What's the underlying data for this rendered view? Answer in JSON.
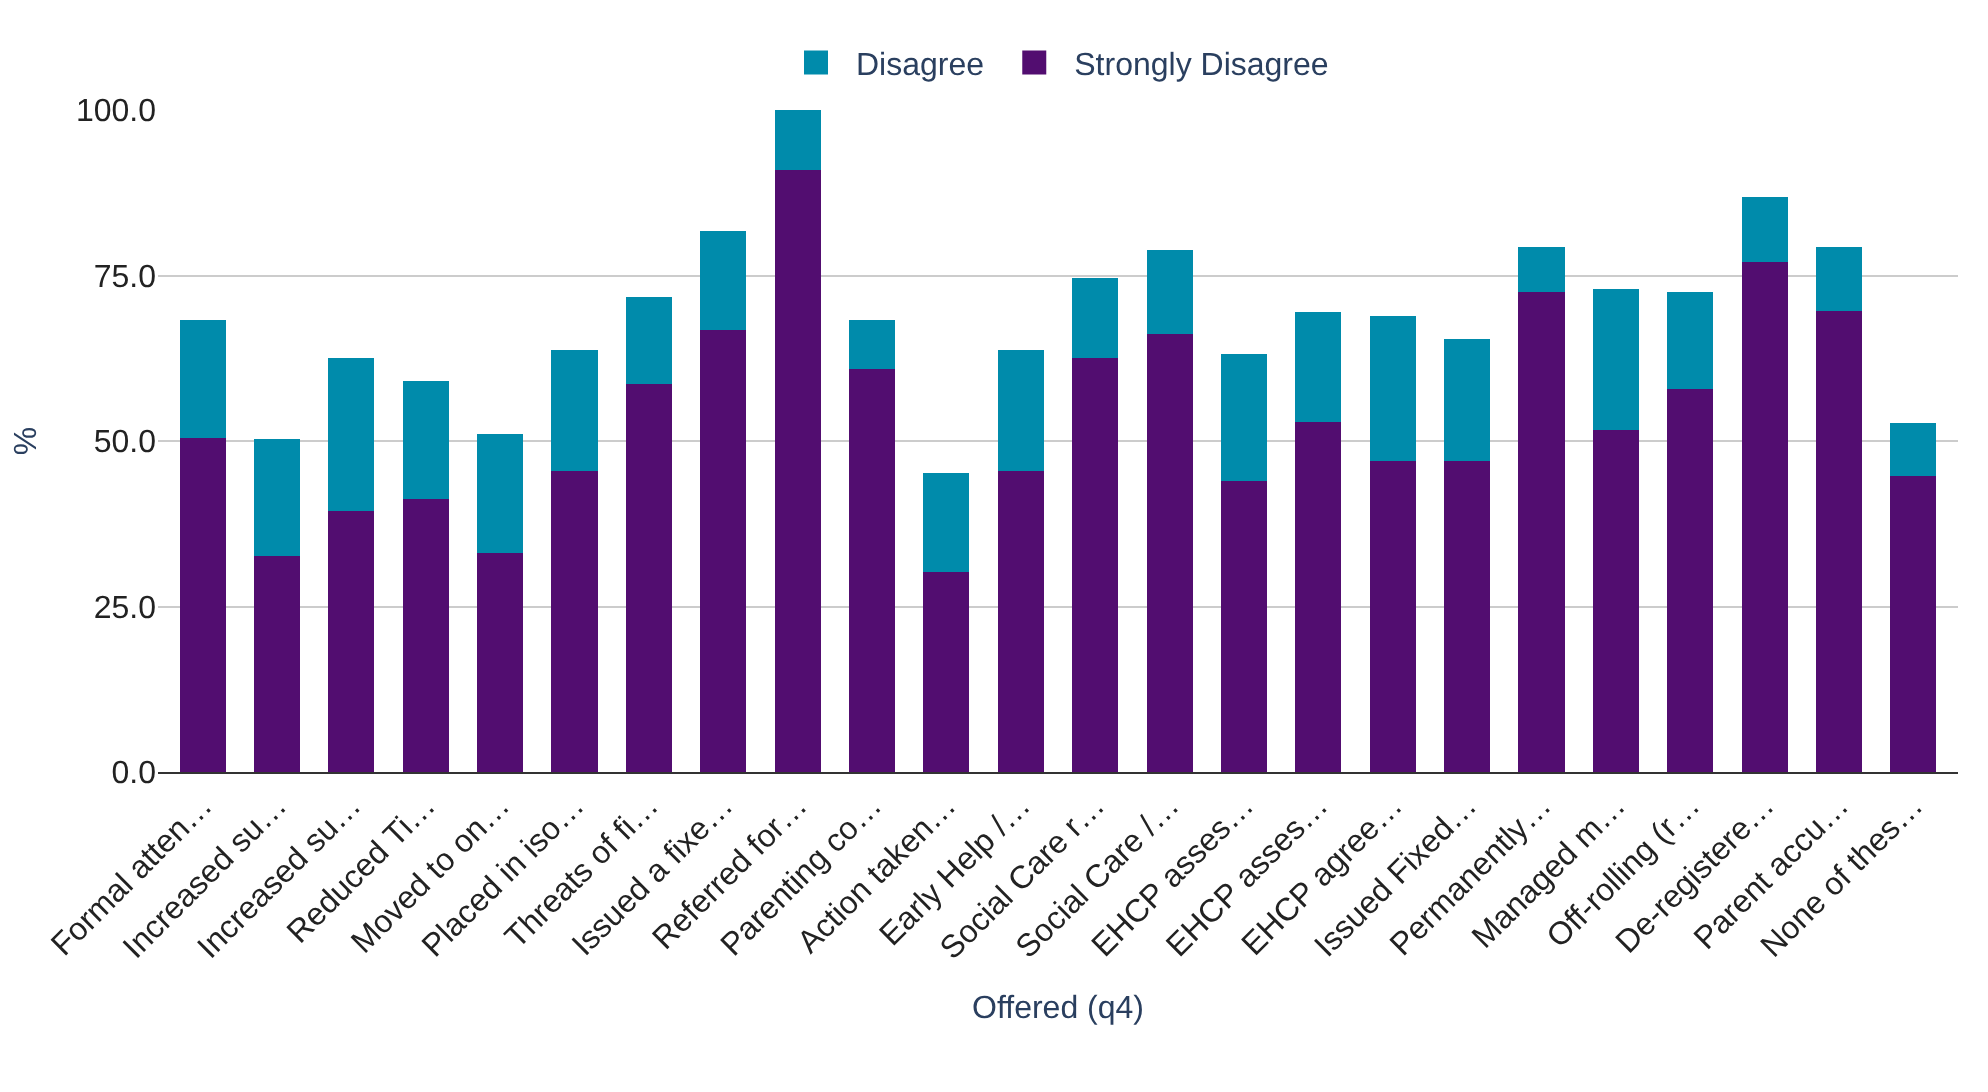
{
  "chart_data": {
    "type": "bar",
    "stacked": true,
    "xlabel": "Offered (q4)",
    "ylabel": "%",
    "categories": [
      "Formal atten…",
      "Increased su…",
      "Increased su…",
      "Reduced Ti…",
      "Moved to on…",
      "Placed in iso…",
      "Threats of fi…",
      "Issued a fixe…",
      "Referred for…",
      "Parenting co…",
      "Action taken…",
      "Early Help /…",
      "Social Care r…",
      "Social Care /…",
      "EHCP asses…",
      "EHCP asses…",
      "EHCP agree…",
      "Issued Fixed…",
      "Permanently…",
      "Managed m…",
      "Off-rolling (r…",
      "De-registere…",
      "Parent accu…",
      "None of thes…"
    ],
    "series": [
      {
        "name": "Strongly Disagree",
        "color": "#520d70",
        "values": [
          50.5,
          32.6,
          39.5,
          41.2,
          33.1,
          45.4,
          58.6,
          66.8,
          91.0,
          60.9,
          30.2,
          45.4,
          62.6,
          66.1,
          44.0,
          52.8,
          47.0,
          47.0,
          72.5,
          51.7,
          57.9,
          77.0,
          69.6,
          44.7
        ]
      },
      {
        "name": "Disagree",
        "color": "#008bab",
        "values": [
          17.8,
          17.7,
          23.0,
          17.9,
          17.9,
          18.3,
          13.2,
          14.9,
          9.0,
          7.4,
          15.0,
          18.3,
          12.0,
          12.7,
          19.2,
          16.7,
          21.9,
          18.4,
          6.8,
          21.3,
          14.6,
          9.9,
          9.7,
          8.0
        ]
      }
    ],
    "ylim": [
      0,
      100
    ],
    "yticks": [
      {
        "value": 0,
        "label": "0.0"
      },
      {
        "value": 25,
        "label": "25.0"
      },
      {
        "value": 50,
        "label": "50.0"
      },
      {
        "value": 75,
        "label": "75.0"
      },
      {
        "value": 100,
        "label": "100.0"
      }
    ],
    "grid": "y",
    "legend": "top"
  }
}
